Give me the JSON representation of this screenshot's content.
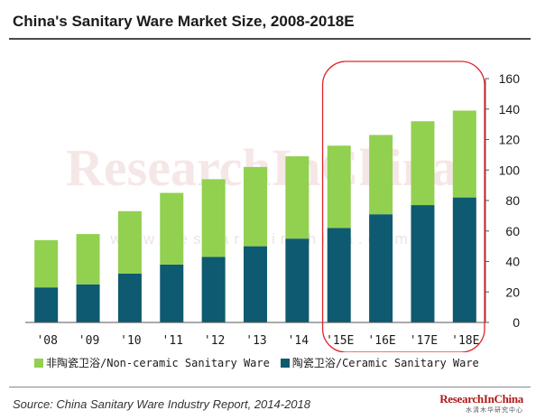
{
  "title": "China's Sanitary Ware Market Size, 2008-2018E",
  "source": "Source:  China Sanitary Ware Industry Report, 2014-2018",
  "brand": {
    "name_a": "Research",
    "name_b": "In",
    "name_c": "China",
    "tagline": "水清木华研究中心"
  },
  "watermark": {
    "main": "ResearchInChina",
    "sub": "www.researchinchina.com"
  },
  "colors": {
    "noncer": "#92d050",
    "ceramic": "#0e5a70",
    "highlight": "#e0242a",
    "axis": "#555555"
  },
  "chart_data": {
    "type": "bar",
    "stacked": true,
    "title": "China's Sanitary Ware Market Size, 2008-2018E",
    "categories": [
      "'08",
      "'09",
      "'10",
      "'11",
      "'12",
      "'13",
      "'14",
      "'15E",
      "'16E",
      "'17E",
      "'18E"
    ],
    "series": [
      {
        "name": "陶瓷卫浴/Ceramic Sanitary Ware",
        "values": [
          23,
          25,
          32,
          38,
          43,
          50,
          55,
          62,
          71,
          77,
          82
        ]
      },
      {
        "name": "非陶瓷卫浴/Non-ceramic Sanitary Ware",
        "values": [
          31,
          33,
          41,
          47,
          51,
          52,
          54,
          54,
          52,
          55,
          57
        ]
      }
    ],
    "ylim": [
      0,
      160
    ],
    "yticks": [
      0,
      20,
      40,
      60,
      80,
      100,
      120,
      140,
      160
    ],
    "yaxis_side": "right",
    "highlight_categories": [
      "'15E",
      "'16E",
      "'17E",
      "'18E"
    ],
    "legend_position": "bottom",
    "grid": false
  }
}
